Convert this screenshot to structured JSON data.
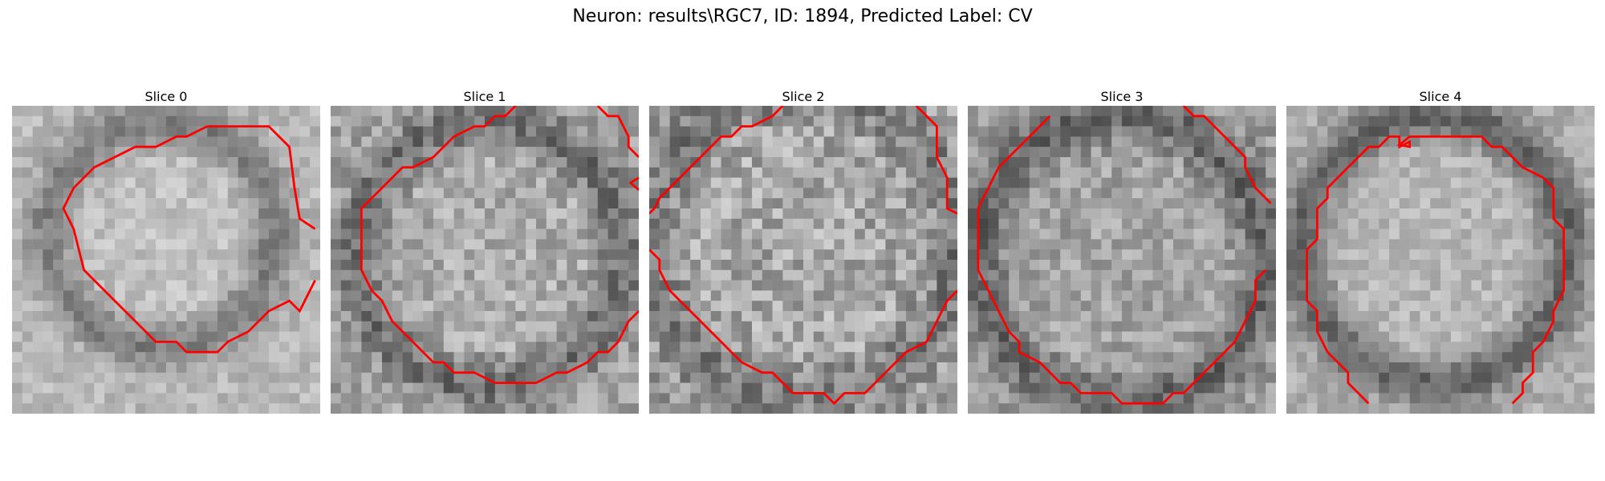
{
  "figure": {
    "title": "Neuron: results\\RGC7, ID: 1894, Predicted Label: CV"
  },
  "panels": [
    {
      "title": "Slice 0"
    },
    {
      "title": "Slice 1"
    },
    {
      "title": "Slice 2"
    },
    {
      "title": "Slice 3"
    },
    {
      "title": "Slice 4"
    }
  ],
  "colors": {
    "contour": "#ff0000",
    "background": "#ffffff"
  }
}
